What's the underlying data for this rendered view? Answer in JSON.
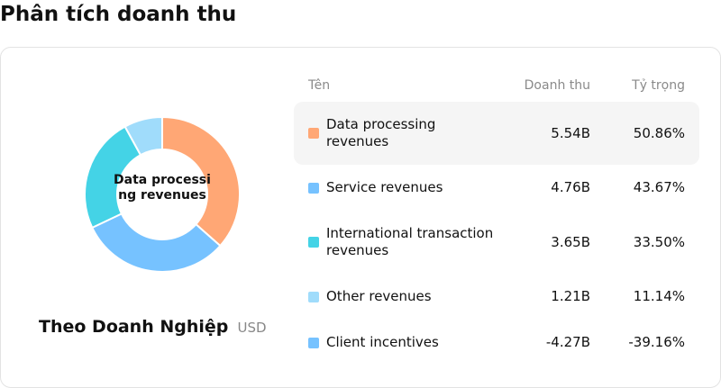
{
  "page": {
    "title": "Phân tích doanh thu"
  },
  "donut": {
    "center_label": "Data processing revenues"
  },
  "caption": {
    "title": "Theo Doanh Nghiệp",
    "unit": "USD"
  },
  "table": {
    "headers": {
      "name": "Tên",
      "revenue": "Doanh thu",
      "share": "Tỷ trọng"
    },
    "rows": [
      {
        "name": "Data processing revenues",
        "revenue": "5.54B",
        "share": "50.86%",
        "color": "#FFA775"
      },
      {
        "name": "Service revenues",
        "revenue": "4.76B",
        "share": "43.67%",
        "color": "#76C2FF"
      },
      {
        "name": "International transaction revenues",
        "revenue": "3.65B",
        "share": "33.50%",
        "color": "#44D3E6"
      },
      {
        "name": "Other revenues",
        "revenue": "1.21B",
        "share": "11.14%",
        "color": "#A0DCFB"
      },
      {
        "name": "Client incentives",
        "revenue": "-4.27B",
        "share": "-39.16%",
        "color": "#76C2FF"
      }
    ]
  },
  "chart_data": {
    "type": "pie",
    "categories": [
      "Data processing revenues",
      "Service revenues",
      "International transaction revenues",
      "Other revenues",
      "Client incentives"
    ],
    "values": [
      5.54,
      4.76,
      3.65,
      1.21,
      -4.27
    ],
    "shares_percent": [
      50.86,
      43.67,
      33.5,
      11.14,
      -39.16
    ],
    "colors": [
      "#FFA775",
      "#76C2FF",
      "#44D3E6",
      "#A0DCFB",
      "#76C2FF"
    ],
    "highlighted": "Data processing revenues"
  }
}
